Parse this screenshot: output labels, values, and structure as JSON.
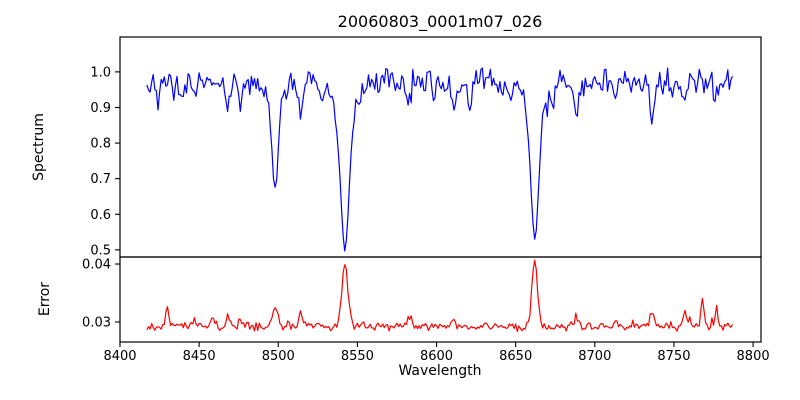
{
  "chart_data": {
    "type": "line",
    "title": "20060803_0001m07_026",
    "xlabel": "Wavelength",
    "x_range": [
      8400,
      8805
    ],
    "x_ticks": [
      {
        "v": 8400,
        "label": "8400"
      },
      {
        "v": 8450,
        "label": "8450"
      },
      {
        "v": 8500,
        "label": "8500"
      },
      {
        "v": 8550,
        "label": "8550"
      },
      {
        "v": 8600,
        "label": "8600"
      },
      {
        "v": 8650,
        "label": "8650"
      },
      {
        "v": 8700,
        "label": "8700"
      },
      {
        "v": 8750,
        "label": "8750"
      },
      {
        "v": 8800,
        "label": "8800"
      }
    ],
    "panels": [
      {
        "ylabel": "Spectrum",
        "y_range": [
          0.48,
          1.098
        ],
        "y_ticks": [
          {
            "v": 0.5,
            "label": "0.5"
          },
          {
            "v": 0.6,
            "label": "0.6"
          },
          {
            "v": 0.7,
            "label": "0.7"
          },
          {
            "v": 0.8,
            "label": "0.8"
          },
          {
            "v": 0.9,
            "label": "0.9"
          },
          {
            "v": 1.0,
            "label": "1.0"
          }
        ],
        "series": {
          "name": "spectrum",
          "color": "#0000ff",
          "x_start": 8417,
          "x_end": 8787,
          "x_step": 1,
          "continuum": 0.972,
          "noise_amplitude": 0.042,
          "spike_prob": 0.08,
          "spike_depth": 0.055,
          "seed": 1234567,
          "absorption_lines": [
            {
              "center": 8424.0,
              "depth": 0.05,
              "sigma": 1.2
            },
            {
              "center": 8434.0,
              "depth": 0.04,
              "sigma": 1.0
            },
            {
              "center": 8439.0,
              "depth": 0.05,
              "sigma": 1.2
            },
            {
              "center": 8447.0,
              "depth": 0.04,
              "sigma": 1.0
            },
            {
              "center": 8468.0,
              "depth": 0.08,
              "sigma": 1.3
            },
            {
              "center": 8476.0,
              "depth": 0.05,
              "sigma": 1.1
            },
            {
              "center": 8498.0,
              "depth": 0.26,
              "sigma": 2.0,
              "wing_depth": 0.042,
              "wing_sigma": 4.5,
              "core_flux": 0.67
            },
            {
              "center": 8514.0,
              "depth": 0.1,
              "sigma": 1.4
            },
            {
              "center": 8527.0,
              "depth": 0.05,
              "sigma": 1.1
            },
            {
              "center": 8542.1,
              "depth": 0.36,
              "sigma": 2.6,
              "wing_depth": 0.11,
              "wing_sigma": 6.0,
              "core_flux": 0.5
            },
            {
              "center": 8582.0,
              "depth": 0.06,
              "sigma": 1.2
            },
            {
              "center": 8598.0,
              "depth": 0.04,
              "sigma": 1.0
            },
            {
              "center": 8611.0,
              "depth": 0.07,
              "sigma": 1.3
            },
            {
              "center": 8621.0,
              "depth": 0.05,
              "sigma": 1.1
            },
            {
              "center": 8648.0,
              "depth": 0.04,
              "sigma": 1.0
            },
            {
              "center": 8662.1,
              "depth": 0.34,
              "sigma": 2.4,
              "wing_depth": 0.1,
              "wing_sigma": 5.5,
              "core_flux": 0.53
            },
            {
              "center": 8674.0,
              "depth": 0.05,
              "sigma": 1.1
            },
            {
              "center": 8688.0,
              "depth": 0.1,
              "sigma": 1.4
            },
            {
              "center": 8713.0,
              "depth": 0.04,
              "sigma": 1.0
            },
            {
              "center": 8736.0,
              "depth": 0.11,
              "sigma": 1.4
            },
            {
              "center": 8757.0,
              "depth": 0.06,
              "sigma": 1.2
            },
            {
              "center": 8776.0,
              "depth": 0.05,
              "sigma": 1.1
            }
          ]
        }
      },
      {
        "ylabel": "Error",
        "y_range": [
          0.02655,
          0.04121
        ],
        "y_ticks": [
          {
            "v": 0.03,
            "label": "0.03"
          },
          {
            "v": 0.04,
            "label": "0.04"
          }
        ],
        "series": {
          "name": "error",
          "color": "#ff0000",
          "x_start": 8417,
          "x_end": 8787,
          "x_step": 1,
          "baseline": 0.0292,
          "noise_amplitude": 0.0009,
          "spike_prob": 0.06,
          "spike_height": 0.0012,
          "seed": 424242,
          "peaks": [
            {
              "center": 8430.0,
              "height": 0.0028,
              "sigma": 1.2
            },
            {
              "center": 8447.0,
              "height": 0.0012,
              "sigma": 1.0
            },
            {
              "center": 8458.0,
              "height": 0.0015,
              "sigma": 1.2
            },
            {
              "center": 8468.0,
              "height": 0.002,
              "sigma": 1.3
            },
            {
              "center": 8476.0,
              "height": 0.0012,
              "sigma": 1.0
            },
            {
              "center": 8498.0,
              "height": 0.0032,
              "sigma": 1.6
            },
            {
              "center": 8514.0,
              "height": 0.0022,
              "sigma": 1.3
            },
            {
              "center": 8542.1,
              "height": 0.0108,
              "sigma": 2.0,
              "peak_value": 0.04
            },
            {
              "center": 8582.0,
              "height": 0.0012,
              "sigma": 1.0
            },
            {
              "center": 8611.0,
              "height": 0.0014,
              "sigma": 1.2
            },
            {
              "center": 8662.1,
              "height": 0.0112,
              "sigma": 1.8,
              "peak_value": 0.04
            },
            {
              "center": 8688.0,
              "height": 0.0016,
              "sigma": 1.2
            },
            {
              "center": 8713.0,
              "height": 0.0012,
              "sigma": 1.0
            },
            {
              "center": 8736.0,
              "height": 0.0026,
              "sigma": 1.3
            },
            {
              "center": 8757.0,
              "height": 0.0028,
              "sigma": 1.2
            },
            {
              "center": 8768.0,
              "height": 0.0042,
              "sigma": 1.0
            },
            {
              "center": 8777.0,
              "height": 0.003,
              "sigma": 1.0
            }
          ]
        }
      }
    ]
  }
}
